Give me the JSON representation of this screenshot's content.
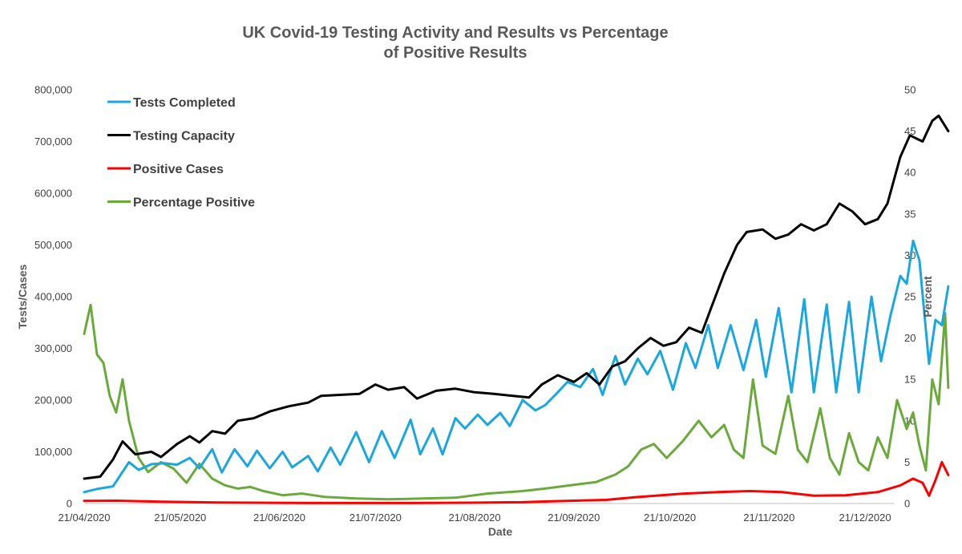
{
  "chart_data": {
    "type": "line",
    "title": "UK Covid-19 Testing Activity and Results vs Percentage of Positive Results",
    "title_lines": [
      "UK Covid-19 Testing Activity and Results vs Percentage",
      "of Positive Results"
    ],
    "xlabel": "Date",
    "ylabel": "Tests/Cases",
    "y2label": "Percent",
    "x_start": "2020-04-21",
    "x_end": "2020-12-30",
    "x_ticks": [
      "21/04/2020",
      "21/05/2020",
      "21/06/2020",
      "21/07/2020",
      "21/08/2020",
      "21/09/2020",
      "21/10/2020",
      "21/11/2020",
      "21/12/2020"
    ],
    "ylim": [
      0,
      800000
    ],
    "y_ticks": [
      "0",
      "100,000",
      "200,000",
      "300,000",
      "400,000",
      "500,000",
      "600,000",
      "700,000",
      "800,000"
    ],
    "y2lim": [
      0,
      50
    ],
    "y2_ticks": [
      "0",
      "5",
      "10",
      "15",
      "20",
      "25",
      "30",
      "35",
      "40",
      "45",
      "50"
    ],
    "grid": false,
    "legend_position": "top-left",
    "series": [
      {
        "name": "Tests Completed",
        "axis": "left",
        "color": "#1aa7e0",
        "points": [
          [
            "2020-04-21",
            22000
          ],
          [
            "2020-04-25",
            28000
          ],
          [
            "2020-04-30",
            33000
          ],
          [
            "2020-05-05",
            80000
          ],
          [
            "2020-05-08",
            65000
          ],
          [
            "2020-05-12",
            76000
          ],
          [
            "2020-05-16",
            78000
          ],
          [
            "2020-05-20",
            75000
          ],
          [
            "2020-05-24",
            88000
          ],
          [
            "2020-05-27",
            68000
          ],
          [
            "2020-05-31",
            105000
          ],
          [
            "2020-06-03",
            60000
          ],
          [
            "2020-06-07",
            105000
          ],
          [
            "2020-06-11",
            72000
          ],
          [
            "2020-06-14",
            102000
          ],
          [
            "2020-06-18",
            68000
          ],
          [
            "2020-06-22",
            100000
          ],
          [
            "2020-06-25",
            70000
          ],
          [
            "2020-06-30",
            92000
          ],
          [
            "2020-07-03",
            62000
          ],
          [
            "2020-07-07",
            108000
          ],
          [
            "2020-07-10",
            75000
          ],
          [
            "2020-07-15",
            138000
          ],
          [
            "2020-07-19",
            80000
          ],
          [
            "2020-07-23",
            140000
          ],
          [
            "2020-07-27",
            88000
          ],
          [
            "2020-08-01",
            162000
          ],
          [
            "2020-08-04",
            95000
          ],
          [
            "2020-08-08",
            145000
          ],
          [
            "2020-08-11",
            95000
          ],
          [
            "2020-08-15",
            165000
          ],
          [
            "2020-08-18",
            145000
          ],
          [
            "2020-08-22",
            172000
          ],
          [
            "2020-08-25",
            152000
          ],
          [
            "2020-08-29",
            175000
          ],
          [
            "2020-09-01",
            150000
          ],
          [
            "2020-09-05",
            200000
          ],
          [
            "2020-09-09",
            180000
          ],
          [
            "2020-09-12",
            190000
          ],
          [
            "2020-09-16",
            215000
          ],
          [
            "2020-09-19",
            235000
          ],
          [
            "2020-09-23",
            225000
          ],
          [
            "2020-09-27",
            260000
          ],
          [
            "2020-09-30",
            210000
          ],
          [
            "2020-10-04",
            285000
          ],
          [
            "2020-10-07",
            230000
          ],
          [
            "2020-10-11",
            280000
          ],
          [
            "2020-10-14",
            250000
          ],
          [
            "2020-10-18",
            295000
          ],
          [
            "2020-10-22",
            220000
          ],
          [
            "2020-10-26",
            310000
          ],
          [
            "2020-10-29",
            262000
          ],
          [
            "2020-11-02",
            345000
          ],
          [
            "2020-11-05",
            262000
          ],
          [
            "2020-11-09",
            345000
          ],
          [
            "2020-11-13",
            258000
          ],
          [
            "2020-11-17",
            355000
          ],
          [
            "2020-11-20",
            245000
          ],
          [
            "2020-11-24",
            378000
          ],
          [
            "2020-11-28",
            215000
          ],
          [
            "2020-12-02",
            395000
          ],
          [
            "2020-12-05",
            215000
          ],
          [
            "2020-12-09",
            385000
          ],
          [
            "2020-12-12",
            215000
          ],
          [
            "2020-12-16",
            390000
          ],
          [
            "2020-12-19",
            215000
          ],
          [
            "2020-12-23",
            400000
          ],
          [
            "2020-12-26",
            275000
          ],
          [
            "2020-12-29",
            365000
          ],
          [
            "2021-01-01",
            440000
          ],
          [
            "2021-01-03",
            425000
          ],
          [
            "2021-01-05",
            508000
          ],
          [
            "2021-01-07",
            470000
          ],
          [
            "2021-01-10",
            270000
          ],
          [
            "2021-01-12",
            355000
          ],
          [
            "2021-01-14",
            345000
          ],
          [
            "2021-01-16",
            420000
          ]
        ]
      },
      {
        "name": "Testing Capacity",
        "axis": "left",
        "color": "#000000",
        "points": [
          [
            "2020-04-21",
            48000
          ],
          [
            "2020-04-26",
            52000
          ],
          [
            "2020-04-30",
            85000
          ],
          [
            "2020-05-03",
            120000
          ],
          [
            "2020-05-07",
            95000
          ],
          [
            "2020-05-12",
            100000
          ],
          [
            "2020-05-15",
            90000
          ],
          [
            "2020-05-20",
            115000
          ],
          [
            "2020-05-24",
            130000
          ],
          [
            "2020-05-27",
            118000
          ],
          [
            "2020-05-31",
            140000
          ],
          [
            "2020-06-04",
            135000
          ],
          [
            "2020-06-08",
            160000
          ],
          [
            "2020-06-13",
            165000
          ],
          [
            "2020-06-18",
            178000
          ],
          [
            "2020-06-24",
            188000
          ],
          [
            "2020-06-30",
            195000
          ],
          [
            "2020-07-04",
            208000
          ],
          [
            "2020-07-10",
            210000
          ],
          [
            "2020-07-16",
            212000
          ],
          [
            "2020-07-21",
            230000
          ],
          [
            "2020-07-25",
            220000
          ],
          [
            "2020-07-30",
            225000
          ],
          [
            "2020-08-03",
            203000
          ],
          [
            "2020-08-09",
            218000
          ],
          [
            "2020-08-15",
            222000
          ],
          [
            "2020-08-21",
            215000
          ],
          [
            "2020-08-27",
            212000
          ],
          [
            "2020-09-02",
            208000
          ],
          [
            "2020-09-07",
            205000
          ],
          [
            "2020-09-11",
            230000
          ],
          [
            "2020-09-16",
            248000
          ],
          [
            "2020-09-21",
            235000
          ],
          [
            "2020-09-25",
            252000
          ],
          [
            "2020-09-29",
            230000
          ],
          [
            "2020-10-03",
            265000
          ],
          [
            "2020-10-07",
            275000
          ],
          [
            "2020-10-11",
            300000
          ],
          [
            "2020-10-15",
            320000
          ],
          [
            "2020-10-19",
            305000
          ],
          [
            "2020-10-23",
            312000
          ],
          [
            "2020-10-27",
            340000
          ],
          [
            "2020-10-31",
            330000
          ],
          [
            "2020-11-03",
            380000
          ],
          [
            "2020-11-07",
            445000
          ],
          [
            "2020-11-11",
            500000
          ],
          [
            "2020-11-14",
            525000
          ],
          [
            "2020-11-19",
            530000
          ],
          [
            "2020-11-23",
            512000
          ],
          [
            "2020-11-27",
            520000
          ],
          [
            "2020-12-01",
            540000
          ],
          [
            "2020-12-05",
            528000
          ],
          [
            "2020-12-09",
            540000
          ],
          [
            "2020-12-13",
            580000
          ],
          [
            "2020-12-17",
            565000
          ],
          [
            "2020-12-21",
            540000
          ],
          [
            "2020-12-25",
            550000
          ],
          [
            "2020-12-28",
            580000
          ],
          [
            "2021-01-01",
            670000
          ],
          [
            "2021-01-04",
            712000
          ],
          [
            "2021-01-08",
            700000
          ],
          [
            "2021-01-11",
            740000
          ],
          [
            "2021-01-13",
            750000
          ],
          [
            "2021-01-16",
            720000
          ]
        ]
      },
      {
        "name": "Positive Cases",
        "axis": "left",
        "color": "#ff0000",
        "points": [
          [
            "2020-04-21",
            5000
          ],
          [
            "2020-05-01",
            5500
          ],
          [
            "2020-05-15",
            3500
          ],
          [
            "2020-06-01",
            2000
          ],
          [
            "2020-07-01",
            1000
          ],
          [
            "2020-08-01",
            1000
          ],
          [
            "2020-08-20",
            1500
          ],
          [
            "2020-09-05",
            2500
          ],
          [
            "2020-09-15",
            4500
          ],
          [
            "2020-10-01",
            7000
          ],
          [
            "2020-10-10",
            12000
          ],
          [
            "2020-10-25",
            19000
          ],
          [
            "2020-11-05",
            22000
          ],
          [
            "2020-11-15",
            24000
          ],
          [
            "2020-11-25",
            22000
          ],
          [
            "2020-12-05",
            15000
          ],
          [
            "2020-12-15",
            16000
          ],
          [
            "2020-12-25",
            22000
          ],
          [
            "2021-01-01",
            35000
          ],
          [
            "2021-01-05",
            48000
          ],
          [
            "2021-01-08",
            40000
          ],
          [
            "2021-01-10",
            15000
          ],
          [
            "2021-01-12",
            45000
          ],
          [
            "2021-01-14",
            80000
          ],
          [
            "2021-01-16",
            55000
          ]
        ]
      },
      {
        "name": "Percentage Positive",
        "axis": "right",
        "color": "#6aaa3b",
        "points": [
          [
            "2020-04-21",
            20.5
          ],
          [
            "2020-04-23",
            24
          ],
          [
            "2020-04-25",
            18
          ],
          [
            "2020-04-27",
            17
          ],
          [
            "2020-04-29",
            13
          ],
          [
            "2020-05-01",
            11
          ],
          [
            "2020-05-03",
            15
          ],
          [
            "2020-05-05",
            10
          ],
          [
            "2020-05-08",
            5.5
          ],
          [
            "2020-05-11",
            3.8
          ],
          [
            "2020-05-15",
            5
          ],
          [
            "2020-05-19",
            4.2
          ],
          [
            "2020-05-23",
            2.5
          ],
          [
            "2020-05-27",
            4.8
          ],
          [
            "2020-05-31",
            3
          ],
          [
            "2020-06-04",
            2.2
          ],
          [
            "2020-06-08",
            1.8
          ],
          [
            "2020-06-12",
            2
          ],
          [
            "2020-06-16",
            1.5
          ],
          [
            "2020-06-22",
            1
          ],
          [
            "2020-06-28",
            1.2
          ],
          [
            "2020-07-05",
            0.8
          ],
          [
            "2020-07-15",
            0.6
          ],
          [
            "2020-07-25",
            0.5
          ],
          [
            "2020-08-05",
            0.6
          ],
          [
            "2020-08-15",
            0.7
          ],
          [
            "2020-08-25",
            1.2
          ],
          [
            "2020-09-05",
            1.5
          ],
          [
            "2020-09-12",
            1.8
          ],
          [
            "2020-09-20",
            2.2
          ],
          [
            "2020-09-28",
            2.6
          ],
          [
            "2020-10-04",
            3.5
          ],
          [
            "2020-10-08",
            4.5
          ],
          [
            "2020-10-12",
            6.5
          ],
          [
            "2020-10-16",
            7.2
          ],
          [
            "2020-10-20",
            5.5
          ],
          [
            "2020-10-25",
            7.5
          ],
          [
            "2020-10-30",
            10
          ],
          [
            "2020-11-03",
            8
          ],
          [
            "2020-11-07",
            9.5
          ],
          [
            "2020-11-10",
            6.5
          ],
          [
            "2020-11-13",
            5.5
          ],
          [
            "2020-11-16",
            15
          ],
          [
            "2020-11-19",
            7
          ],
          [
            "2020-11-23",
            6
          ],
          [
            "2020-11-27",
            13
          ],
          [
            "2020-11-30",
            6.5
          ],
          [
            "2020-12-03",
            5
          ],
          [
            "2020-12-07",
            11.5
          ],
          [
            "2020-12-10",
            5.5
          ],
          [
            "2020-12-13",
            3.5
          ],
          [
            "2020-12-16",
            8.5
          ],
          [
            "2020-12-19",
            5
          ],
          [
            "2020-12-22",
            4
          ],
          [
            "2020-12-25",
            8
          ],
          [
            "2020-12-28",
            5.5
          ],
          [
            "2020-12-31",
            12.5
          ],
          [
            "2021-01-03",
            9
          ],
          [
            "2021-01-05",
            11
          ],
          [
            "2021-01-07",
            7
          ],
          [
            "2021-01-09",
            4
          ],
          [
            "2021-01-11",
            15
          ],
          [
            "2021-01-13",
            12
          ],
          [
            "2021-01-15",
            23
          ],
          [
            "2021-01-16",
            14
          ]
        ]
      }
    ]
  }
}
